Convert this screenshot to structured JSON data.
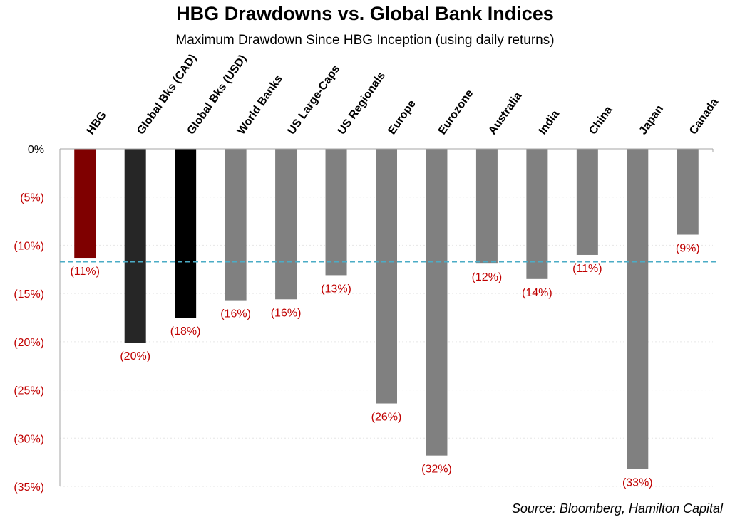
{
  "chart_data": {
    "type": "bar",
    "title": "HBG Drawdowns vs. Global Bank Indices",
    "subtitle": "Maximum Drawdown Since HBG Inception (using daily returns)",
    "source": "Source: Bloomberg, Hamilton Capital",
    "categories": [
      "HBG",
      "Global Bks (CAD)",
      "Global Bks (USD)",
      "World Banks",
      "US Large-Caps",
      "US Regionals",
      "Europe",
      "Eurozone",
      "Australia",
      "India",
      "China",
      "Japan",
      "Canada"
    ],
    "values": [
      -11.3,
      -20.1,
      -17.5,
      -15.7,
      -15.6,
      -13.1,
      -26.4,
      -31.8,
      -11.9,
      -13.5,
      -11.0,
      -33.2,
      -8.9
    ],
    "data_labels": [
      "(11%)",
      "(20%)",
      "(18%)",
      "(16%)",
      "(16%)",
      "(13%)",
      "(26%)",
      "(32%)",
      "(12%)",
      "(14%)",
      "(11%)",
      "(33%)",
      "(9%)"
    ],
    "bar_colors": [
      "#7f0000",
      "#262626",
      "#000000",
      "#808080",
      "#808080",
      "#808080",
      "#808080",
      "#808080",
      "#808080",
      "#808080",
      "#808080",
      "#808080",
      "#808080"
    ],
    "ylim": [
      -35,
      0
    ],
    "yticks": [
      0,
      -5,
      -10,
      -15,
      -20,
      -25,
      -30,
      -35
    ],
    "ytick_labels": [
      "0%",
      "(5%)",
      "(10%)",
      "(15%)",
      "(20%)",
      "(25%)",
      "(30%)",
      "(35%)"
    ],
    "reference_line": {
      "value": -11.7,
      "color": "#4bacc6",
      "style": "dashed"
    },
    "grid": true,
    "label_color": "#c00000"
  }
}
